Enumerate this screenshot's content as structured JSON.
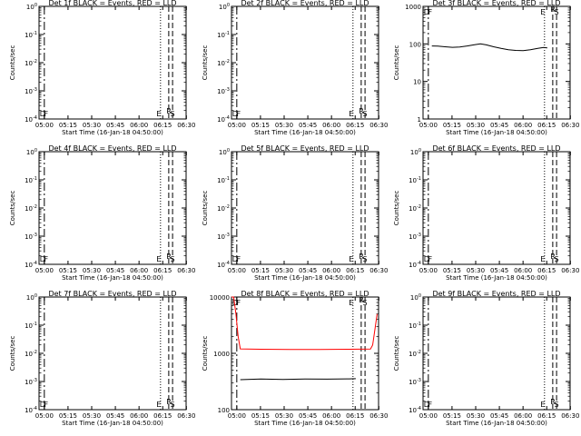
{
  "x_ticks": [
    "05:00",
    "05:15",
    "05:30",
    "05:45",
    "06:00",
    "06:15",
    "06:30"
  ],
  "xlabel": "Start Time (16-Jan-18 04:50:00)",
  "ylabel": "Counts/sec",
  "marker_labels": [
    "D",
    "F",
    "E",
    "S",
    "R"
  ],
  "colors": {
    "events": "#000000",
    "lld": "#ff0000"
  },
  "chart_data": [
    {
      "type": "line",
      "title": "Det 1f BLACK = Events, RED = LLD",
      "y_ticks": [
        "10^-4",
        "10^-3",
        "10^-2",
        "10^-1",
        "10^0"
      ],
      "series": []
    },
    {
      "type": "line",
      "title": "Det 2f BLACK = Events, RED = LLD",
      "y_ticks": [
        "10^-4",
        "10^-3",
        "10^-2",
        "10^-1",
        "10^0"
      ],
      "series": []
    },
    {
      "type": "line",
      "title": "Det 3f BLACK = Events, RED = LLD",
      "y_ticks": [
        "1",
        "10",
        "100",
        "1000"
      ],
      "series": [
        {
          "color": "events",
          "points": [
            [
              0.06,
              88
            ],
            [
              0.1,
              87
            ],
            [
              0.15,
              84
            ],
            [
              0.2,
              81
            ],
            [
              0.25,
              83
            ],
            [
              0.3,
              88
            ],
            [
              0.35,
              95
            ],
            [
              0.39,
              100
            ],
            [
              0.43,
              94
            ],
            [
              0.48,
              84
            ],
            [
              0.53,
              76
            ],
            [
              0.58,
              70
            ],
            [
              0.63,
              67
            ],
            [
              0.68,
              66
            ],
            [
              0.73,
              70
            ],
            [
              0.78,
              76
            ],
            [
              0.82,
              80
            ],
            [
              0.845,
              78
            ]
          ]
        }
      ]
    },
    {
      "type": "line",
      "title": "Det 4f BLACK = Events, RED = LLD",
      "y_ticks": [
        "10^-4",
        "10^-3",
        "10^-2",
        "10^-1",
        "10^0"
      ],
      "series": []
    },
    {
      "type": "line",
      "title": "Det 5f BLACK = Events, RED = LLD",
      "y_ticks": [
        "10^-4",
        "10^-3",
        "10^-2",
        "10^-1",
        "10^0"
      ],
      "series": []
    },
    {
      "type": "line",
      "title": "Det 6f BLACK = Events, RED = LLD",
      "y_ticks": [
        "10^-4",
        "10^-3",
        "10^-2",
        "10^-1",
        "10^0"
      ],
      "series": []
    },
    {
      "type": "line",
      "title": "Det 7f BLACK = Events, RED = LLD",
      "y_ticks": [
        "10^-4",
        "10^-3",
        "10^-2",
        "10^-1",
        "10^0"
      ],
      "series": []
    },
    {
      "type": "line",
      "title": "Det 8f BLACK = Events, RED = LLD",
      "y_ticks": [
        "100",
        "1000",
        "10000"
      ],
      "series": [
        {
          "color": "lld",
          "points": [
            [
              0.0,
              20000
            ],
            [
              0.015,
              13000
            ],
            [
              0.03,
              5000
            ],
            [
              0.045,
              2000
            ],
            [
              0.06,
              1200
            ],
            [
              0.2,
              1180
            ],
            [
              0.4,
              1170
            ],
            [
              0.6,
              1175
            ],
            [
              0.8,
              1180
            ],
            [
              0.945,
              1190
            ],
            [
              0.96,
              1400
            ],
            [
              0.975,
              2600
            ],
            [
              0.99,
              5000
            ]
          ]
        },
        {
          "color": "events",
          "points": [
            [
              0.06,
              340
            ],
            [
              0.2,
              350
            ],
            [
              0.35,
              345
            ],
            [
              0.5,
              350
            ],
            [
              0.65,
              348
            ],
            [
              0.8,
              352
            ],
            [
              0.845,
              355
            ]
          ]
        }
      ]
    },
    {
      "type": "line",
      "title": "Det 9f BLACK = Events, RED = LLD",
      "y_ticks": [
        "10^-4",
        "10^-3",
        "10^-2",
        "10^-1",
        "10^0"
      ],
      "series": []
    }
  ]
}
